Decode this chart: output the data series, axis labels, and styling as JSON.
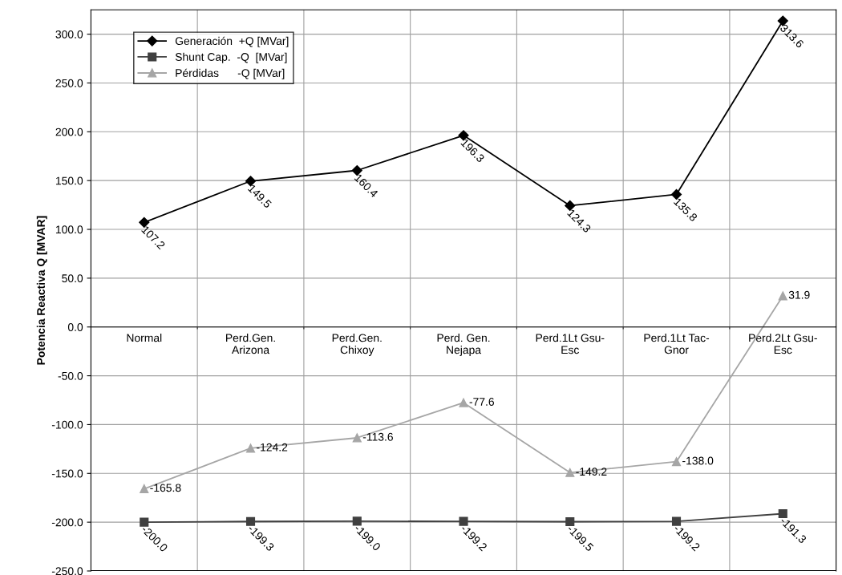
{
  "chart_data": {
    "type": "line",
    "ylabel": "Potencia Reactiva Q [MVAR]",
    "categories": [
      "Normal",
      "Perd.Gen.\nArizona",
      "Perd.Gen.\nChixoy",
      "Perd. Gen.\nNejapa",
      "Perd.1Lt Gsu-\nEsc",
      "Perd.1Lt Tac-\nGnor",
      "Perd.2Lt Gsu-\nEsc"
    ],
    "series": [
      {
        "name": "Generación  +Q [MVar]",
        "color": "#000000",
        "marker": "diamond",
        "values": [
          107.2,
          149.5,
          160.4,
          196.3,
          124.3,
          135.8,
          313.6
        ],
        "value_labels": [
          "107.2",
          "149.5",
          "160.4",
          "196.3",
          "124.3",
          "135.8",
          "313.6"
        ]
      },
      {
        "name": "Shunt Cap.  -Q  [MVar]",
        "color": "#404040",
        "marker": "square",
        "values": [
          -200.0,
          -199.3,
          -199.0,
          -199.2,
          -199.5,
          -199.2,
          -191.3
        ],
        "value_labels": [
          "-200.0",
          "-199.3",
          "-199.0",
          "-199.2",
          "-199.5",
          "-199.2",
          "-191.3"
        ]
      },
      {
        "name": "Pérdidas      -Q [MVar]",
        "color": "#a6a6a6",
        "marker": "triangle",
        "values": [
          -165.8,
          -124.2,
          -113.6,
          -77.6,
          -149.2,
          -138.0,
          31.9
        ],
        "value_labels": [
          "-165.8",
          "-124.2",
          "-113.6",
          "-77.6",
          "-149.2",
          "-138.0",
          "31.9"
        ]
      }
    ],
    "ylim": [
      -250,
      325
    ],
    "yticks": [
      {
        "value": -250,
        "label": "-250.0"
      },
      {
        "value": -200,
        "label": "-200.0"
      },
      {
        "value": -150,
        "label": "-150.0"
      },
      {
        "value": -100,
        "label": "-100.0"
      },
      {
        "value": -50,
        "label": "-50.0"
      },
      {
        "value": 0,
        "label": "0.0"
      },
      {
        "value": 50,
        "label": "50.0"
      },
      {
        "value": 100,
        "label": "100.0"
      },
      {
        "value": 150,
        "label": "150.0"
      },
      {
        "value": 200,
        "label": "200.0"
      },
      {
        "value": 250,
        "label": "250.0"
      },
      {
        "value": 300,
        "label": "300.0"
      }
    ],
    "grid": true,
    "legend": "top left",
    "line_style": "solid"
  }
}
